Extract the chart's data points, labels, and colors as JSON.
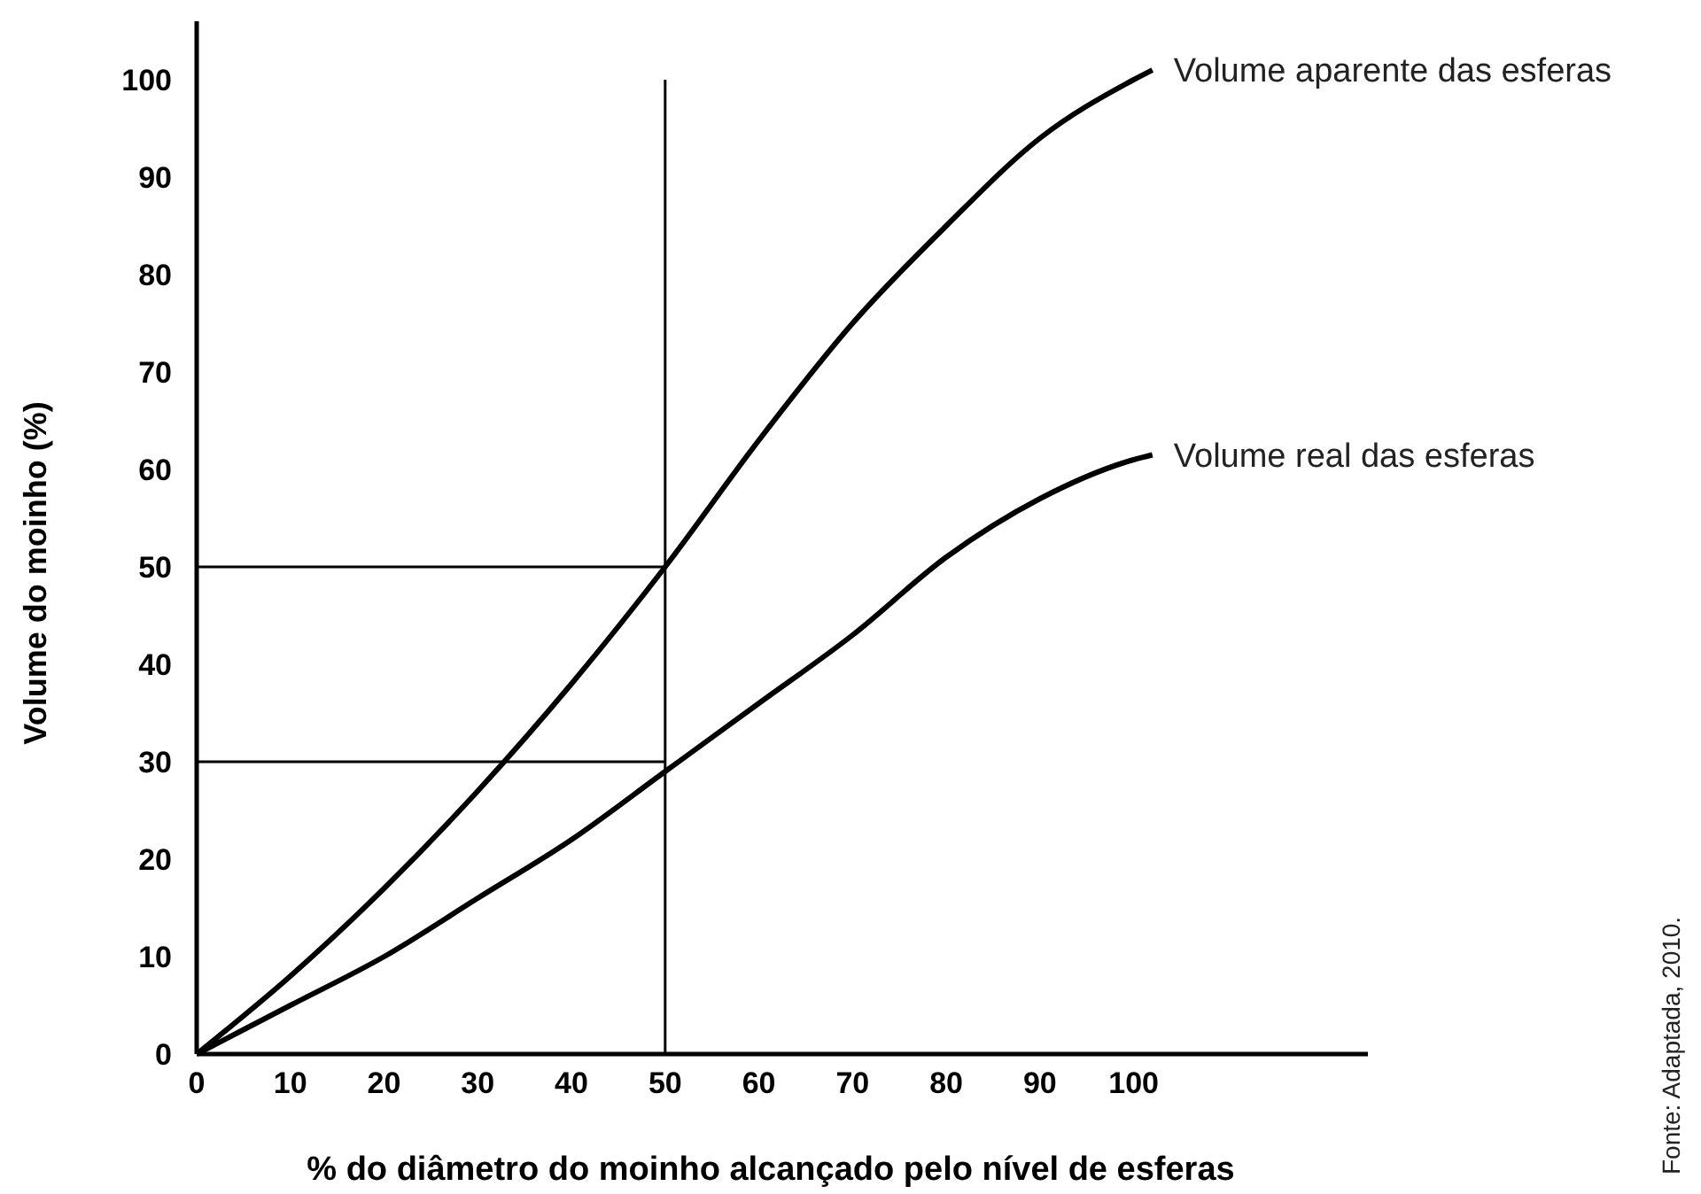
{
  "chart_data": {
    "type": "line",
    "xlabel": "% do diâmetro do moinho alcançado pelo nível de esferas",
    "ylabel": "Volume do moinho (%)",
    "xlim": [
      0,
      125
    ],
    "ylim": [
      0,
      106
    ],
    "xticks": [
      0,
      10,
      20,
      30,
      40,
      50,
      60,
      70,
      80,
      90,
      100
    ],
    "yticks": [
      0,
      10,
      20,
      30,
      40,
      50,
      60,
      70,
      80,
      90,
      100
    ],
    "x": [
      0,
      10,
      20,
      30,
      40,
      50,
      60,
      70,
      80,
      90,
      100,
      102
    ],
    "series": [
      {
        "name": "Volume aparente das esferas",
        "color": "#000000",
        "values": [
          0,
          8,
          17,
          27,
          38,
          50,
          63,
          75,
          85,
          94,
          100,
          101
        ]
      },
      {
        "name": "Volume real das esferas",
        "color": "#000000",
        "values": [
          0,
          5,
          10,
          16,
          22,
          29,
          36,
          43,
          51,
          57,
          61,
          61.5
        ]
      }
    ],
    "ref_lines": [
      {
        "axis": "x",
        "value": 50
      },
      {
        "axis": "y",
        "value": 50
      },
      {
        "axis": "y",
        "value": 30
      }
    ],
    "annotations": [
      "Fonte: Adaptada, 2010."
    ],
    "grid": false,
    "marker": "none",
    "line_style": "solid"
  }
}
